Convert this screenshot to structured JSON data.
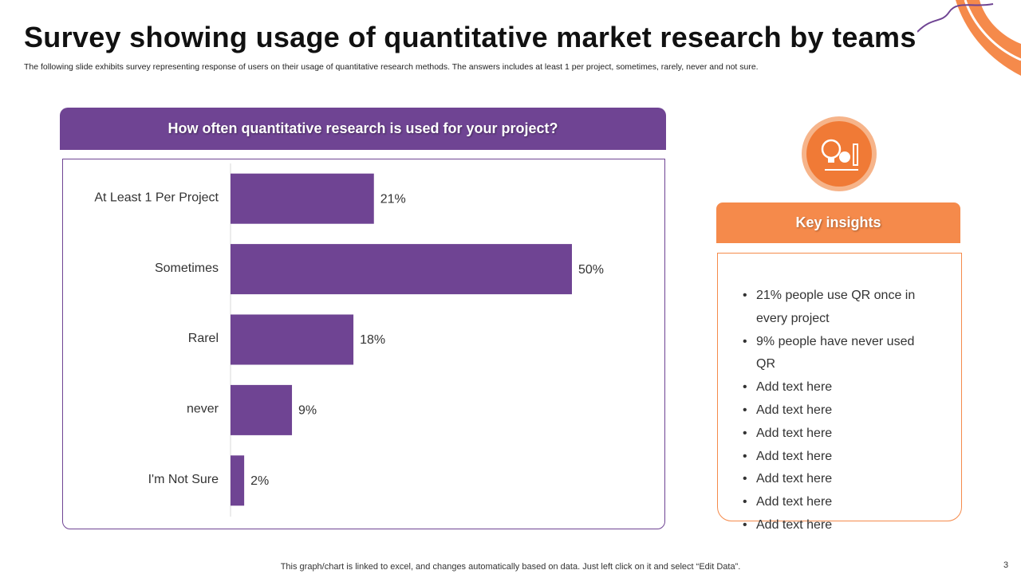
{
  "title": "Survey showing usage of quantitative market research by teams",
  "subtitle": "The following slide exhibits survey representing response of users on their usage of quantitative research methods. The answers includes at least 1 per project, sometimes, rarely, never and not sure.",
  "chart_data": {
    "type": "bar",
    "orientation": "horizontal",
    "title": "How often quantitative research is used for your project?",
    "categories": [
      "At Least 1 Per Project",
      "Sometimes",
      "Rarel",
      "never",
      "I'm Not Sure"
    ],
    "values": [
      21,
      50,
      18,
      9,
      2
    ],
    "value_labels": [
      "21%",
      "50%",
      "18%",
      "9%",
      "2%"
    ],
    "color": "#6f4493"
  },
  "insights": {
    "title": "Key insights",
    "items": [
      "21% people use QR once in every project",
      "9% people have never used QR",
      "Add text here",
      "Add text here",
      "Add text here",
      "Add text here",
      "Add text here",
      "Add text here",
      "Add text here"
    ]
  },
  "footnote": "This graph/chart is linked to excel,  and changes automatically based on data. Just left click on it and select “Edit Data”.",
  "page_number": "3"
}
